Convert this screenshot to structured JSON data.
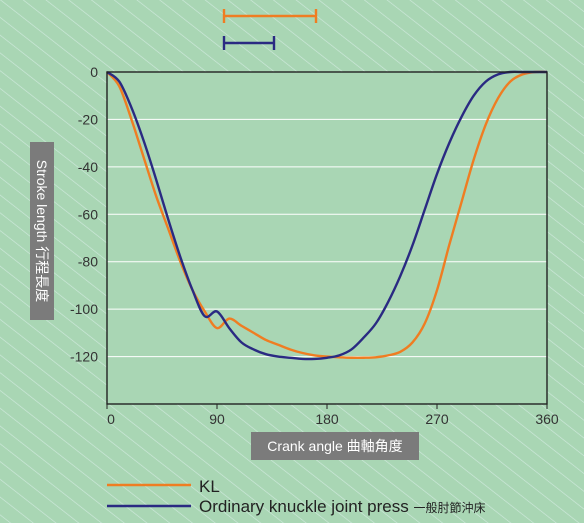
{
  "chart_data": {
    "type": "line",
    "xlabel": "Crank angle 曲軸角度",
    "ylabel": "Stroke length 行程長度",
    "xlim": [
      0,
      360
    ],
    "ylim": [
      -140,
      0
    ],
    "xticks": [
      0,
      90,
      180,
      270,
      360
    ],
    "yticks": [
      0,
      -20,
      -40,
      -60,
      -80,
      -100,
      -120
    ],
    "grid": "horizontal",
    "legend_position": "bottom-left",
    "series": [
      {
        "name": "KL",
        "color": "#ef7d22",
        "x": [
          0,
          10,
          20,
          30,
          40,
          50,
          60,
          70,
          80,
          90,
          100,
          110,
          120,
          130,
          140,
          150,
          160,
          170,
          180,
          190,
          200,
          210,
          220,
          230,
          240,
          250,
          260,
          270,
          280,
          290,
          300,
          310,
          320,
          330,
          340,
          350,
          360
        ],
        "y": [
          0,
          -6,
          -20,
          -36,
          -52,
          -66,
          -80,
          -92,
          -101,
          -108,
          -104,
          -107,
          -110,
          -113,
          -115,
          -117,
          -118.5,
          -119.5,
          -120,
          -120.3,
          -120.5,
          -120.5,
          -120.3,
          -119.5,
          -118,
          -114,
          -106,
          -92,
          -73,
          -55,
          -37,
          -22,
          -11,
          -4,
          -1,
          0,
          0
        ]
      },
      {
        "name": "Ordinary knuckle joint press",
        "name_suffix": "一般肘節沖床",
        "color": "#2a2a82",
        "x": [
          0,
          10,
          20,
          30,
          40,
          50,
          60,
          70,
          80,
          90,
          100,
          110,
          120,
          130,
          140,
          150,
          160,
          170,
          180,
          190,
          200,
          210,
          220,
          230,
          240,
          250,
          260,
          270,
          280,
          290,
          300,
          310,
          320,
          330,
          340,
          350,
          360
        ],
        "y": [
          0,
          -4,
          -15,
          -29,
          -45,
          -62,
          -78,
          -92,
          -103,
          -101,
          -108,
          -114,
          -117,
          -119,
          -120,
          -120.5,
          -121,
          -121,
          -120.5,
          -119.5,
          -117,
          -112,
          -106,
          -97,
          -86,
          -73,
          -58,
          -43,
          -30,
          -19,
          -10,
          -4,
          -1,
          0,
          0,
          0,
          0
        ]
      }
    ]
  },
  "top_legend": {
    "orange_color": "#ef7d22",
    "blue_color": "#2a2a82",
    "orange_span": [
      0.51,
      0.97
    ],
    "blue_span": [
      0.51,
      0.76
    ]
  },
  "colors": {
    "background": "#a9d6b4",
    "hatch": "#d2ece0",
    "plot_background": "#a9d6b4",
    "gridline": "#ffffff",
    "axis_label_box": "#7b7b7b"
  }
}
